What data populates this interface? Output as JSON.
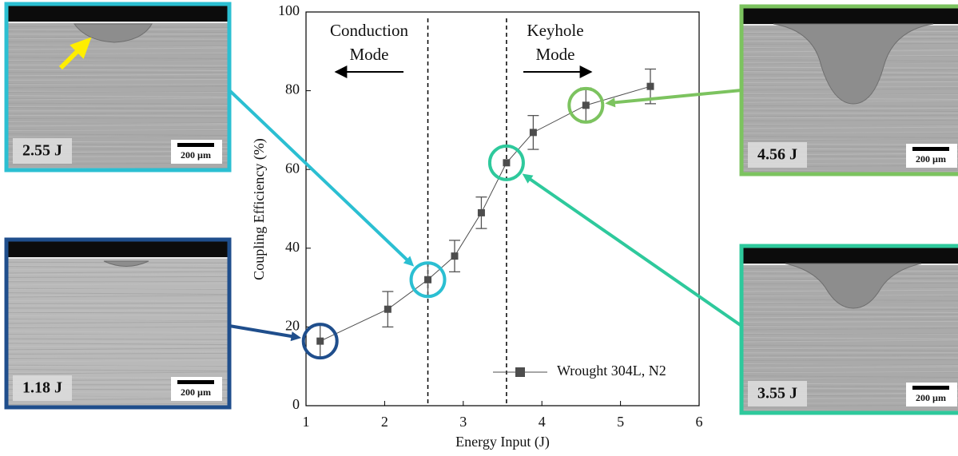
{
  "chart_data": {
    "type": "line",
    "xlabel": "Energy Input (J)",
    "ylabel": "Coupling Efficiency (%)",
    "xlim": [
      1,
      6
    ],
    "ylim": [
      0,
      100
    ],
    "xticks": [
      1,
      2,
      3,
      4,
      5,
      6
    ],
    "yticks": [
      0,
      20,
      40,
      60,
      80,
      100
    ],
    "legend": "lower right",
    "series": [
      {
        "name": "Wrought 304L, N2",
        "color": "#4d4d4d",
        "x": [
          1.18,
          2.04,
          2.55,
          2.89,
          3.23,
          3.55,
          3.89,
          4.56,
          5.38
        ],
        "values": [
          16.4,
          24.5,
          32,
          38,
          49,
          61.7,
          69.4,
          76.3,
          81.1
        ],
        "errors": [
          4.3,
          4.5,
          4,
          4,
          4,
          0,
          4.3,
          4.4,
          4.4
        ]
      }
    ],
    "mode_lines": [
      2.55,
      3.55
    ],
    "annotations": [
      [
        "Conduction",
        "Mode"
      ],
      [
        "Keyhole",
        "Mode"
      ]
    ],
    "insets": [
      {
        "label": "2.55 J",
        "scale": "200 µm",
        "color": "#2bbfd2"
      },
      {
        "label": "1.18 J",
        "scale": "200 µm",
        "color": "#1f4e8c"
      },
      {
        "label": "4.56 J",
        "scale": "200 µm",
        "color": "#7cc35f"
      },
      {
        "label": "3.55 J",
        "scale": "200 µm",
        "color": "#2ec99c"
      }
    ]
  }
}
